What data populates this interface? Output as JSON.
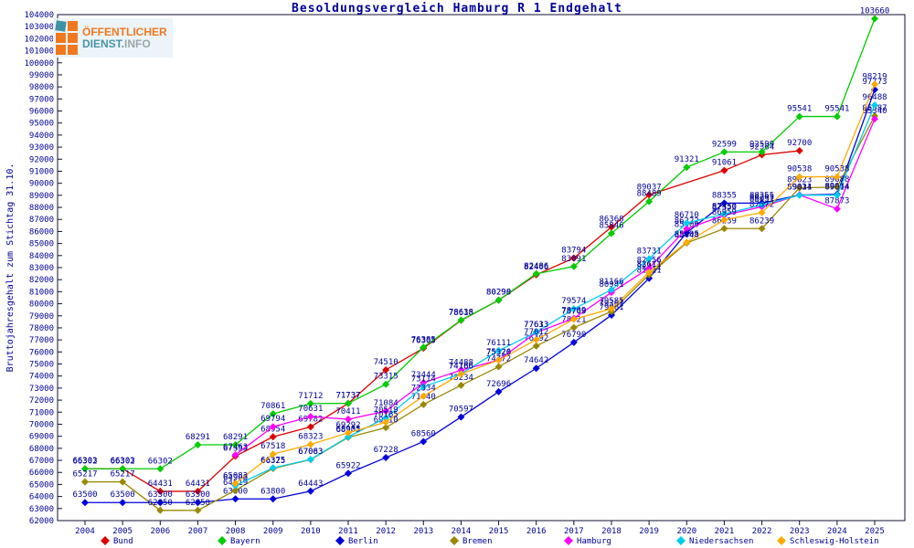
{
  "logo": {
    "line1": "ÖFFENTLICHER",
    "line2a": "DIENST.",
    "line2b": "INFO"
  },
  "chart_data": {
    "type": "line",
    "title": "Besoldungsvergleich Hamburg R 1 Endgehalt",
    "ylabel": "Bruttojahresgehalt zum Stichtag 31.10.",
    "ylim": [
      62000,
      104000
    ],
    "ytick_step": 1000,
    "x_years": [
      2004,
      2005,
      2006,
      2007,
      2008,
      2009,
      2010,
      2011,
      2012,
      2013,
      2014,
      2015,
      2016,
      2017,
      2018,
      2019,
      2020,
      2021,
      2022,
      2023,
      2024,
      2025
    ],
    "grid": false,
    "legend_position": "bottom",
    "label_color": "#000099",
    "series": [
      {
        "name": "Bund",
        "color": "#dd0000",
        "points": [
          [
            2004,
            66303
          ],
          [
            2005,
            66303
          ],
          [
            2006,
            64431
          ],
          [
            2007,
            64431
          ],
          [
            2008,
            67353
          ],
          [
            2009,
            68954
          ],
          [
            2010,
            69782
          ],
          [
            2011,
            71737
          ],
          [
            2012,
            74510
          ],
          [
            2013,
            76305
          ],
          [
            2014,
            78618
          ],
          [
            2015,
            80290
          ],
          [
            2016,
            82406
          ],
          [
            2017,
            83794
          ],
          [
            2018,
            86368
          ],
          [
            2019,
            89037
          ],
          [
            2021,
            91061
          ],
          [
            2022,
            92364
          ],
          [
            2023,
            92700
          ]
        ]
      },
      {
        "name": "Bayern",
        "color": "#00cc00",
        "points": [
          [
            2004,
            66302
          ],
          [
            2005,
            66302
          ],
          [
            2006,
            66302
          ],
          [
            2007,
            68291
          ],
          [
            2008,
            68291
          ],
          [
            2009,
            70861
          ],
          [
            2010,
            71712
          ],
          [
            2011,
            71737
          ],
          [
            2012,
            73315
          ],
          [
            2013,
            76385
          ],
          [
            2014,
            78638
          ],
          [
            2015,
            80298
          ],
          [
            2016,
            82486
          ],
          [
            2017,
            83091
          ],
          [
            2018,
            85846
          ],
          [
            2019,
            88489
          ],
          [
            2020,
            91321
          ],
          [
            2021,
            92599
          ],
          [
            2022,
            92599
          ],
          [
            2023,
            95541
          ],
          [
            2024,
            95541
          ],
          [
            2025,
            103660
          ]
        ]
      },
      {
        "name": "Berlin",
        "color": "#0000dd",
        "points": [
          [
            2004,
            63500
          ],
          [
            2005,
            63500
          ],
          [
            2006,
            63500
          ],
          [
            2007,
            63500
          ],
          [
            2008,
            63800
          ],
          [
            2009,
            63800
          ],
          [
            2010,
            64443
          ],
          [
            2011,
            65922
          ],
          [
            2012,
            67228
          ],
          [
            2013,
            68560
          ],
          [
            2014,
            70597
          ],
          [
            2015,
            72696
          ],
          [
            2016,
            74642
          ],
          [
            2017,
            76790
          ],
          [
            2018,
            79061
          ],
          [
            2019,
            82111
          ],
          [
            2020,
            85900
          ],
          [
            2021,
            88355
          ],
          [
            2022,
            88355
          ],
          [
            2023,
            89024
          ],
          [
            2024,
            89084
          ],
          [
            2025,
            97773
          ]
        ]
      },
      {
        "name": "Bremen",
        "color": "#998800",
        "points": [
          [
            2004,
            65217
          ],
          [
            2005,
            65217
          ],
          [
            2006,
            62850
          ],
          [
            2007,
            62850
          ],
          [
            2008,
            64519
          ],
          [
            2009,
            66325
          ],
          [
            2010,
            67063
          ],
          [
            2011,
            68905
          ],
          [
            2012,
            69710
          ],
          [
            2013,
            71640
          ],
          [
            2014,
            73234
          ],
          [
            2015,
            74772
          ],
          [
            2016,
            76492
          ],
          [
            2017,
            78021
          ],
          [
            2018,
            79361
          ],
          [
            2019,
            82411
          ],
          [
            2020,
            85048
          ],
          [
            2021,
            86239
          ],
          [
            2022,
            86239
          ],
          [
            2023,
            89623
          ],
          [
            2024,
            89688
          ],
          [
            2025,
            95587
          ]
        ]
      },
      {
        "name": "Hamburg",
        "color": "#ff00ff",
        "points": [
          [
            2008,
            67463
          ],
          [
            2009,
            69794
          ],
          [
            2010,
            70631
          ],
          [
            2011,
            70411
          ],
          [
            2012,
            71084
          ],
          [
            2013,
            73444
          ],
          [
            2014,
            74488
          ],
          [
            2015,
            75326
          ],
          [
            2016,
            77613
          ],
          [
            2017,
            78789
          ],
          [
            2018,
            80941
          ],
          [
            2019,
            82956
          ],
          [
            2020,
            86222
          ],
          [
            2021,
            87350
          ],
          [
            2022,
            88051
          ],
          [
            2023,
            89034
          ],
          [
            2024,
            87873
          ],
          [
            2025,
            95340
          ]
        ]
      },
      {
        "name": "Niedersachsen",
        "color": "#00ccee",
        "points": [
          [
            2008,
            64908
          ],
          [
            2009,
            66375
          ],
          [
            2010,
            67083
          ],
          [
            2011,
            68955
          ],
          [
            2012,
            70519
          ],
          [
            2013,
            73114
          ],
          [
            2014,
            74186
          ],
          [
            2015,
            76111
          ],
          [
            2016,
            77633
          ],
          [
            2017,
            79574
          ],
          [
            2018,
            81166
          ],
          [
            2019,
            83731
          ],
          [
            2020,
            86710
          ],
          [
            2021,
            87450
          ],
          [
            2022,
            88205
          ],
          [
            2023,
            89011
          ],
          [
            2024,
            89014
          ],
          [
            2025,
            96488
          ]
        ]
      },
      {
        "name": "Schleswig-Holstein",
        "color": "#ffaa00",
        "points": [
          [
            2008,
            65083
          ],
          [
            2009,
            67518
          ],
          [
            2010,
            68323
          ],
          [
            2011,
            69292
          ],
          [
            2012,
            70165
          ],
          [
            2013,
            72334
          ],
          [
            2014,
            74166
          ],
          [
            2015,
            75320
          ],
          [
            2016,
            77012
          ],
          [
            2017,
            78709
          ],
          [
            2018,
            79585
          ],
          [
            2019,
            82611
          ],
          [
            2020,
            85105
          ],
          [
            2021,
            86959
          ],
          [
            2022,
            87572
          ],
          [
            2023,
            90538
          ],
          [
            2024,
            90538
          ],
          [
            2025,
            98219
          ]
        ]
      }
    ]
  }
}
